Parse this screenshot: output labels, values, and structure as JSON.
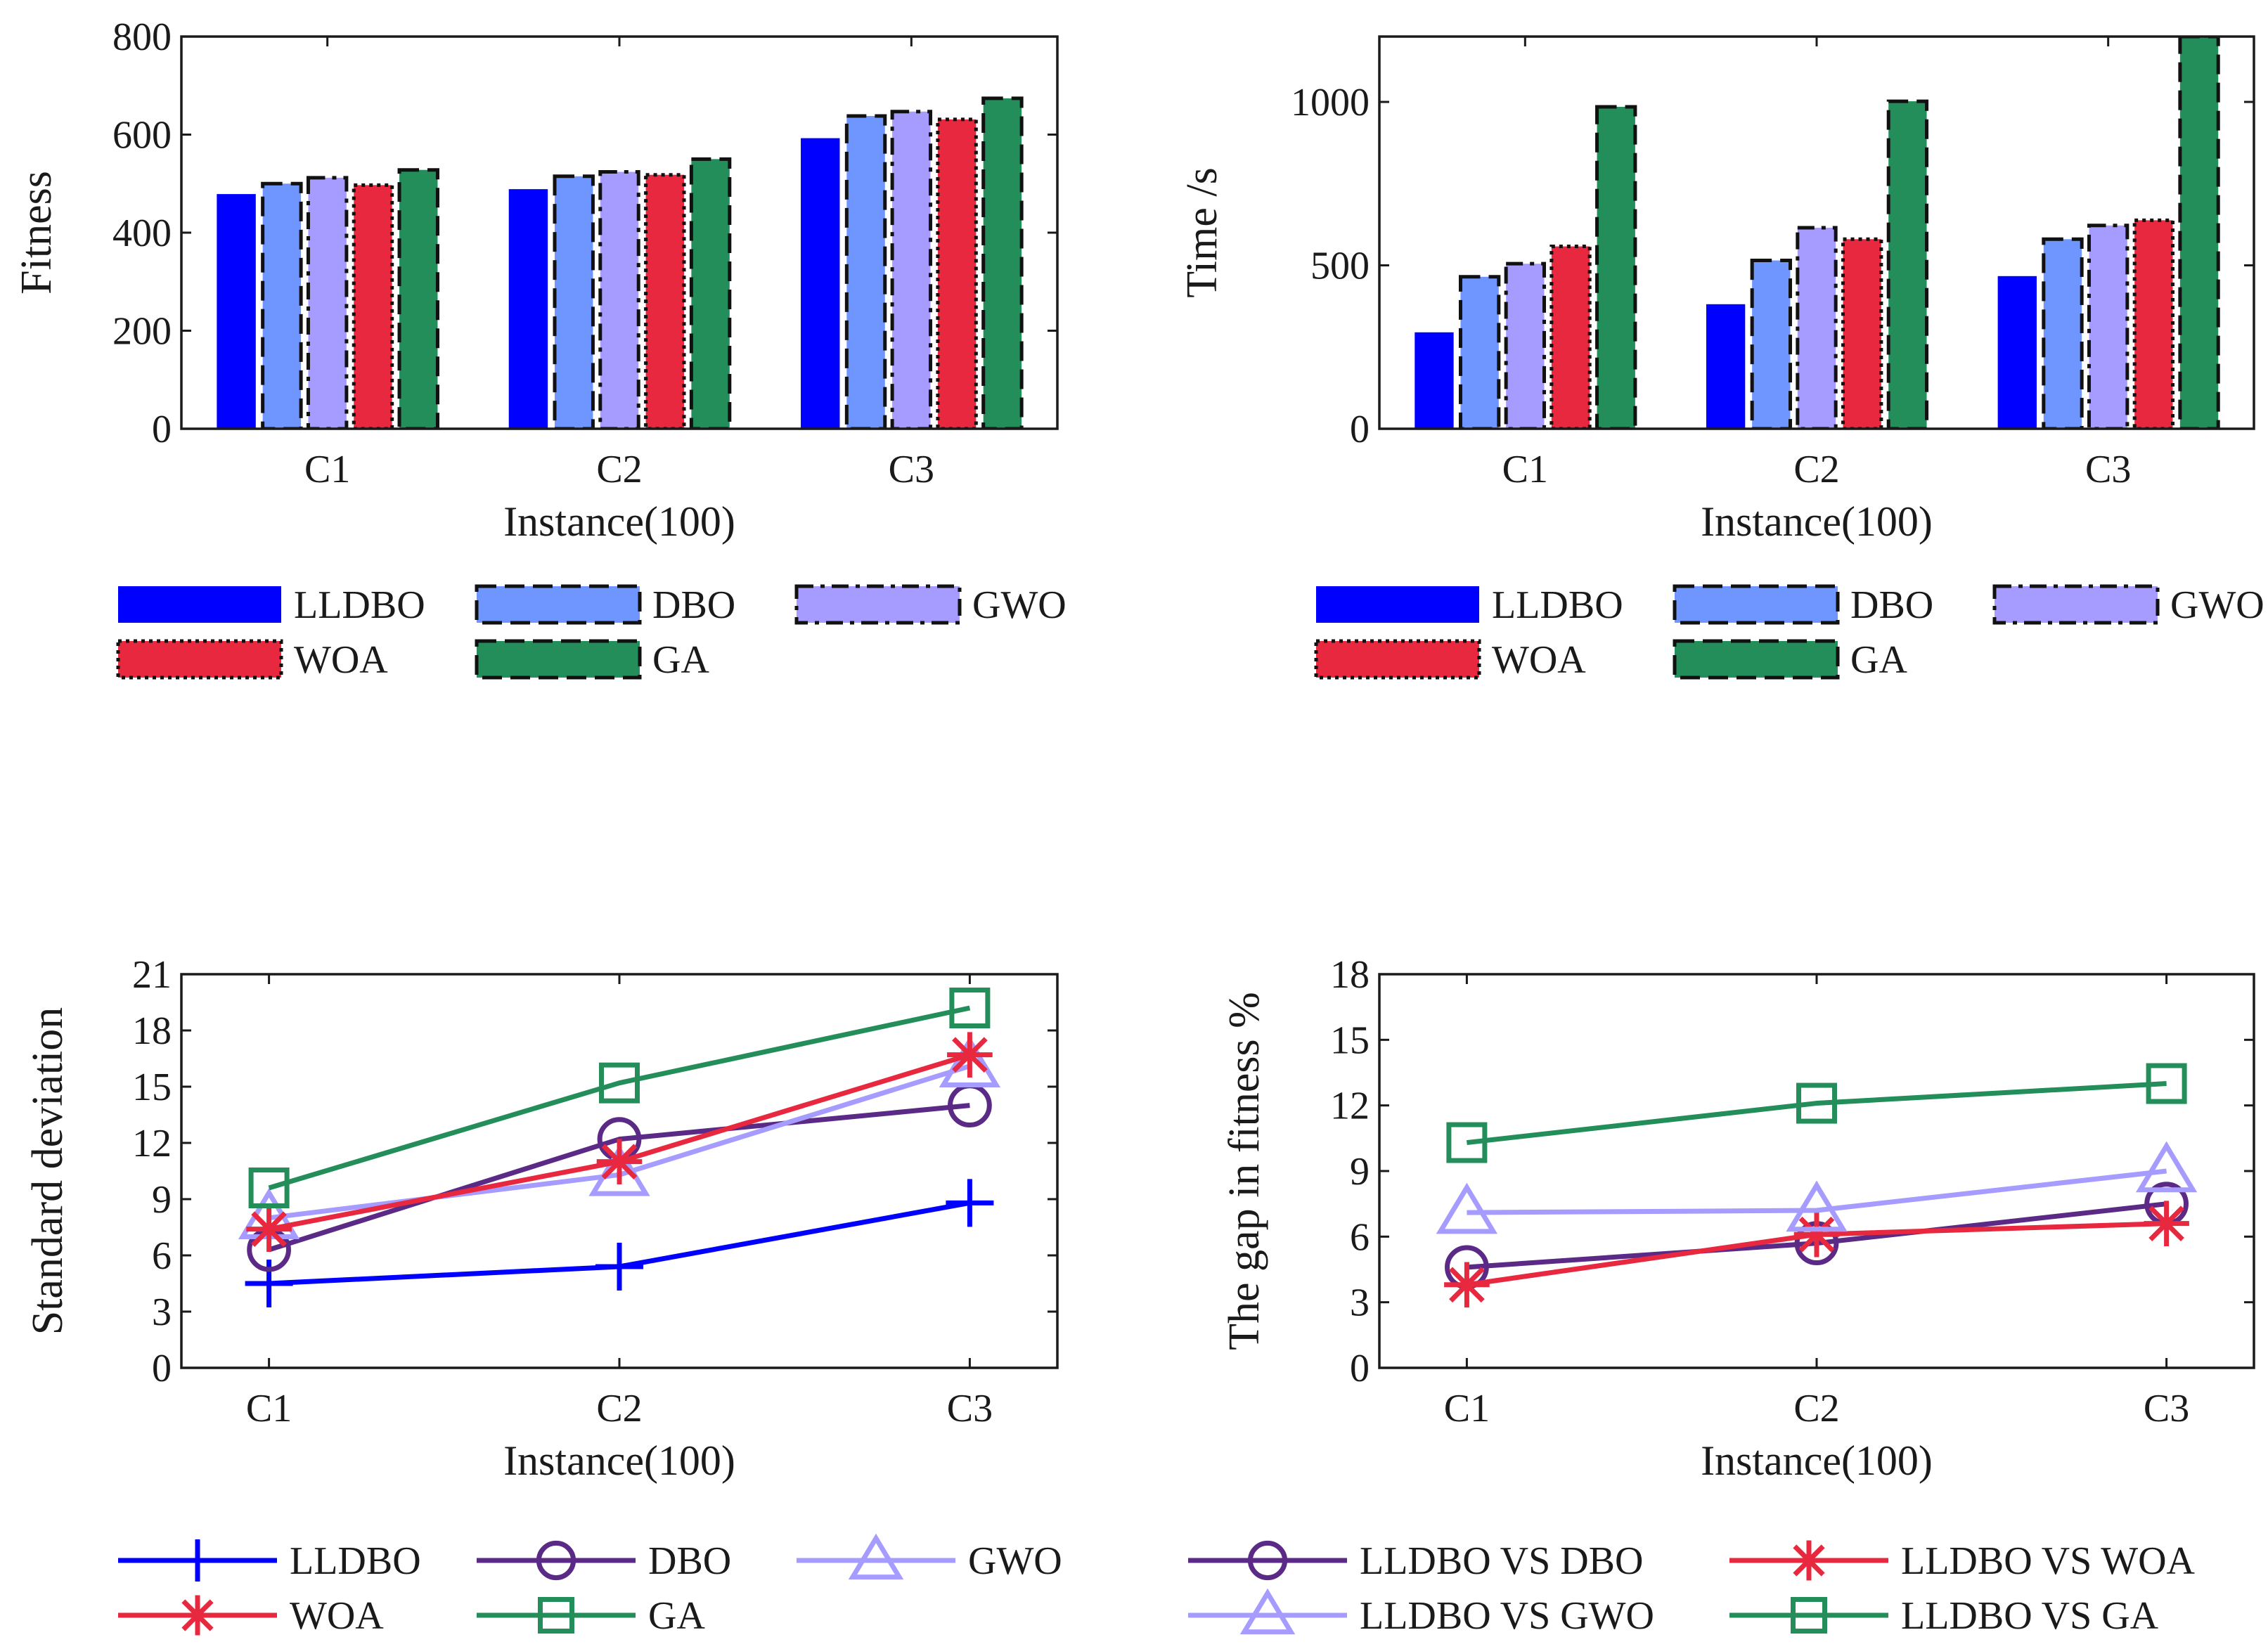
{
  "chart_data": [
    {
      "type": "bar",
      "title": "",
      "xlabel": "Instance(100)",
      "ylabel": "Fitness",
      "categories": [
        "C1",
        "C2",
        "C3"
      ],
      "ylim": [
        0,
        800
      ],
      "yticks": [
        "0",
        "200",
        "400",
        "600",
        "800"
      ],
      "series": [
        {
          "name": "LLDBO",
          "color": "#0000ff",
          "dash": "",
          "values": [
            478,
            488,
            592
          ]
        },
        {
          "name": "DBO",
          "color": "#6f96ff",
          "dash": "28 12",
          "values": [
            500,
            515,
            638
          ]
        },
        {
          "name": "GWO",
          "color": "#a69cff",
          "dash": "24 10 6 10",
          "values": [
            512,
            524,
            647
          ]
        },
        {
          "name": "WOA",
          "color": "#e8283f",
          "dash": "5 6",
          "values": [
            497,
            518,
            631
          ]
        },
        {
          "name": "GA",
          "color": "#238e59",
          "dash": "28 12",
          "values": [
            528,
            550,
            674
          ]
        }
      ]
    },
    {
      "type": "bar",
      "title": "",
      "xlabel": "Instance(100)",
      "ylabel": "Time /s",
      "categories": [
        "C1",
        "C2",
        "C3"
      ],
      "ylim": [
        0,
        1200
      ],
      "yticks": [
        "0",
        "500",
        "1000"
      ],
      "series": [
        {
          "name": "LLDBO",
          "color": "#0000ff",
          "dash": "",
          "values": [
            294,
            380,
            466
          ]
        },
        {
          "name": "DBO",
          "color": "#6f96ff",
          "dash": "28 12",
          "values": [
            465,
            515,
            580
          ]
        },
        {
          "name": "GWO",
          "color": "#a69cff",
          "dash": "24 10 6 10",
          "values": [
            505,
            615,
            622
          ]
        },
        {
          "name": "WOA",
          "color": "#e8283f",
          "dash": "5 6",
          "values": [
            558,
            580,
            638
          ]
        },
        {
          "name": "GA",
          "color": "#238e59",
          "dash": "28 12",
          "values": [
            985,
            1002,
            1200
          ]
        }
      ]
    },
    {
      "type": "line",
      "title": "",
      "xlabel": "Instance(100)",
      "ylabel": "Standard deviation",
      "categories": [
        "C1",
        "C2",
        "C3"
      ],
      "ylim": [
        0,
        21
      ],
      "yticks": [
        "0",
        "3",
        "6",
        "9",
        "12",
        "15",
        "18",
        "21"
      ],
      "series": [
        {
          "name": "LLDBO",
          "color": "#0000ff",
          "marker": "plus",
          "values": [
            4.5,
            5.4,
            8.8
          ]
        },
        {
          "name": "DBO",
          "color": "#5a2a86",
          "marker": "circle",
          "values": [
            6.3,
            12.2,
            14.0
          ]
        },
        {
          "name": "GWO",
          "color": "#a69cff",
          "marker": "triangle",
          "values": [
            8.0,
            10.3,
            16.1
          ]
        },
        {
          "name": "WOA",
          "color": "#e8283f",
          "marker": "star",
          "values": [
            7.4,
            11.0,
            16.7
          ]
        },
        {
          "name": "GA",
          "color": "#238e59",
          "marker": "square",
          "values": [
            9.6,
            15.2,
            19.2
          ]
        }
      ]
    },
    {
      "type": "line",
      "title": "",
      "xlabel": "Instance(100)",
      "ylabel": "The gap in fitness %",
      "categories": [
        "C1",
        "C2",
        "C3"
      ],
      "ylim": [
        0,
        18
      ],
      "yticks": [
        "0",
        "3",
        "6",
        "9",
        "12",
        "15",
        "18"
      ],
      "series": [
        {
          "name": "LLDBO VS DBO",
          "color": "#5a2a86",
          "marker": "circle",
          "values": [
            4.6,
            5.7,
            7.5
          ]
        },
        {
          "name": "LLDBO VS WOA",
          "color": "#e8283f",
          "marker": "star",
          "values": [
            3.8,
            6.1,
            6.6
          ]
        },
        {
          "name": "LLDBO VS GWO",
          "color": "#a69cff",
          "marker": "triangle",
          "values": [
            7.1,
            7.2,
            9.0
          ]
        },
        {
          "name": "LLDBO VS GA",
          "color": "#238e59",
          "marker": "square",
          "values": [
            10.3,
            12.1,
            13.0
          ]
        }
      ]
    }
  ]
}
